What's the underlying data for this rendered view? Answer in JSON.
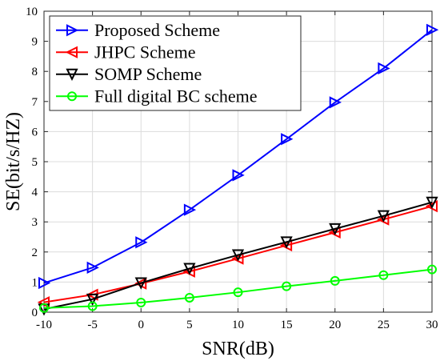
{
  "chart_data": {
    "type": "line",
    "title": "",
    "xlabel": "SNR(dB)",
    "ylabel": "SE(bit/s/HZ)",
    "x": [
      -10,
      -5,
      0,
      5,
      10,
      15,
      20,
      25,
      30
    ],
    "xlim": [
      -10,
      30
    ],
    "ylim": [
      0,
      10
    ],
    "xticks": [
      "-10",
      "-5",
      "0",
      "5",
      "10",
      "15",
      "20",
      "25",
      "30"
    ],
    "yticks": [
      "0",
      "1",
      "2",
      "3",
      "4",
      "5",
      "6",
      "7",
      "8",
      "9",
      "10"
    ],
    "grid": true,
    "legend_position": "top-left",
    "series": [
      {
        "name": "Proposed Scheme",
        "color": "#0000ff",
        "marker": "triangle-right",
        "values": [
          0.97,
          1.48,
          2.32,
          3.4,
          4.55,
          5.75,
          6.97,
          8.1,
          9.38
        ]
      },
      {
        "name": "JHPC Scheme",
        "color": "#ff0000",
        "marker": "triangle-left",
        "values": [
          0.33,
          0.58,
          0.95,
          1.35,
          1.78,
          2.22,
          2.65,
          3.08,
          3.52
        ]
      },
      {
        "name": "SOMP Scheme",
        "color": "#000000",
        "marker": "triangle-down",
        "values": [
          0.1,
          0.43,
          0.97,
          1.45,
          1.9,
          2.33,
          2.77,
          3.2,
          3.65
        ]
      },
      {
        "name": "Full digital BC scheme",
        "color": "#00ff00",
        "marker": "circle",
        "values": [
          0.14,
          0.2,
          0.32,
          0.48,
          0.66,
          0.86,
          1.04,
          1.23,
          1.42
        ]
      }
    ]
  }
}
